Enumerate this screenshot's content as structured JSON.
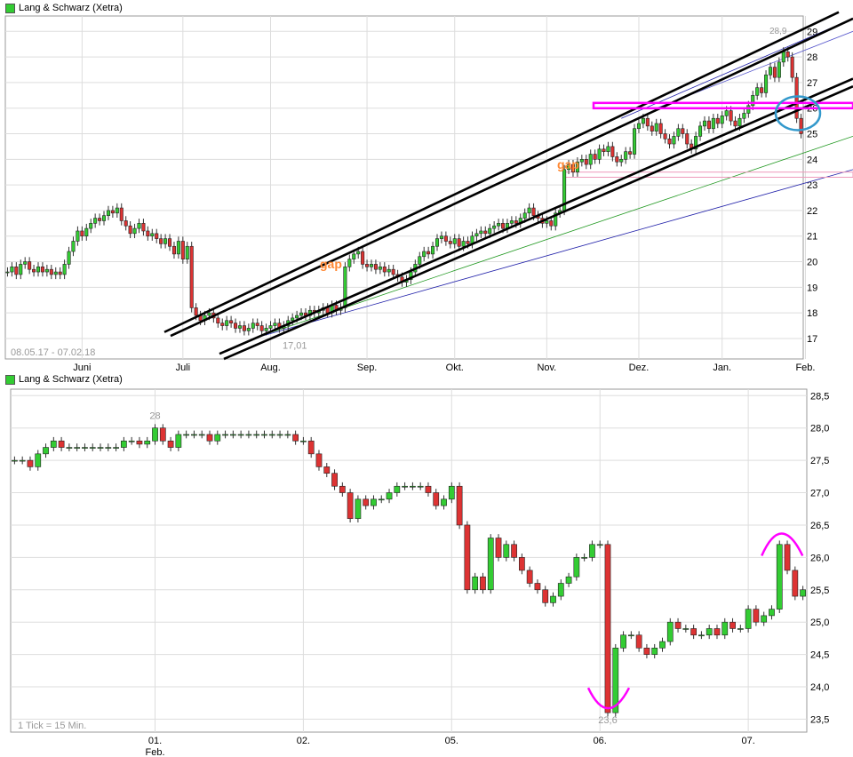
{
  "charts": [
    {
      "legend_label": "Lang & Schwarz (Xetra)",
      "range_label": "08.05.17 - 07.02.18",
      "x_ticks": [
        "Juni",
        "Juli",
        "Aug.",
        "Sep.",
        "Okt.",
        "Nov.",
        "Dez.",
        "Jan.",
        "Feb."
      ],
      "y_ticks": [
        "17",
        "18",
        "19",
        "20",
        "21",
        "22",
        "23",
        "24",
        "25",
        "26",
        "27",
        "28",
        "29"
      ],
      "annotations": [
        "gap",
        "gap"
      ],
      "low_label": "17,01",
      "high_label": "28,9"
    },
    {
      "legend_label": "Lang & Schwarz (Xetra)",
      "tick_note": "1 Tick = 15 Min.",
      "x_ticks": [
        "01.",
        "02.",
        "05.",
        "06.",
        "07."
      ],
      "x_sub": "Feb.",
      "y_ticks": [
        "23,5",
        "24,0",
        "24,5",
        "25,0",
        "25,5",
        "26,0",
        "26,5",
        "27,0",
        "27,5",
        "28,0",
        "28,5"
      ],
      "high_label": "28",
      "low_label": "23,6"
    }
  ],
  "chart_data": [
    {
      "type": "candlestick",
      "ylim": [
        16.2,
        29.6
      ],
      "grid": true,
      "up_color": "#33cc33",
      "down_color": "#dd3333",
      "channel_color": "#000000",
      "support_color": "#ff00ff",
      "circle_color": "#3399cc",
      "x_ticks": [
        "Juni",
        "Juli",
        "Aug.",
        "Sep.",
        "Okt.",
        "Nov.",
        "Dez.",
        "Jan.",
        "Feb."
      ],
      "tick_index": [
        17,
        40,
        60,
        82,
        102,
        123,
        144,
        163,
        182
      ],
      "closes": [
        19.6,
        19.8,
        19.5,
        19.9,
        20.0,
        19.7,
        19.6,
        19.8,
        19.6,
        19.7,
        19.5,
        19.6,
        19.5,
        19.9,
        20.4,
        20.8,
        21.2,
        21.0,
        21.3,
        21.5,
        21.7,
        21.6,
        21.8,
        22.0,
        21.9,
        22.1,
        21.6,
        21.4,
        21.1,
        21.3,
        21.5,
        21.2,
        21.0,
        21.1,
        20.9,
        20.7,
        20.9,
        20.6,
        20.3,
        20.8,
        20.1,
        20.6,
        18.2,
        17.9,
        17.7,
        17.9,
        18.0,
        17.8,
        17.6,
        17.5,
        17.7,
        17.6,
        17.4,
        17.5,
        17.3,
        17.4,
        17.6,
        17.5,
        17.3,
        17.4,
        17.5,
        17.6,
        17.4,
        17.5,
        17.7,
        17.8,
        17.9,
        18.0,
        17.9,
        18.1,
        18.0,
        18.1,
        18.2,
        18.0,
        18.3,
        18.1,
        18.2,
        19.8,
        20.1,
        20.3,
        20.4,
        19.9,
        19.8,
        19.9,
        19.7,
        19.8,
        19.6,
        19.7,
        19.5,
        19.4,
        19.2,
        19.3,
        19.6,
        19.9,
        20.2,
        20.4,
        20.3,
        20.6,
        20.9,
        21.0,
        20.8,
        20.7,
        20.9,
        20.6,
        20.8,
        20.7,
        21.0,
        21.1,
        21.2,
        21.1,
        21.3,
        21.4,
        21.5,
        21.3,
        21.5,
        21.6,
        21.5,
        21.7,
        21.9,
        22.1,
        21.8,
        21.7,
        21.5,
        21.6,
        21.4,
        21.9,
        22.0,
        23.6,
        23.8,
        23.5,
        23.9,
        24.0,
        23.8,
        24.2,
        24.0,
        24.4,
        24.3,
        24.5,
        24.1,
        23.9,
        24.0,
        24.3,
        24.2,
        25.2,
        25.4,
        25.6,
        25.3,
        25.1,
        25.4,
        25.0,
        24.8,
        24.6,
        24.9,
        25.2,
        25.0,
        24.6,
        24.4,
        24.9,
        25.3,
        25.5,
        25.2,
        25.6,
        25.4,
        25.7,
        25.9,
        25.5,
        25.3,
        25.6,
        25.8,
        26.1,
        26.5,
        26.8,
        26.6,
        27.3,
        27.6,
        27.2,
        27.8,
        28.2,
        28.0,
        27.2,
        25.6,
        25.0
      ],
      "high_label_value": 28.9,
      "low_label_value": 17.01,
      "support_level": 26.1
    },
    {
      "type": "candlestick",
      "ylim": [
        23.3,
        28.6
      ],
      "grid": true,
      "x_ticks": [
        "01.",
        "02.",
        "05.",
        "06.",
        "07."
      ],
      "tick_index": [
        18,
        37,
        56,
        75,
        94
      ],
      "closes": [
        27.5,
        27.5,
        27.4,
        27.6,
        27.7,
        27.8,
        27.7,
        27.7,
        27.7,
        27.7,
        27.7,
        27.7,
        27.7,
        27.7,
        27.8,
        27.8,
        27.75,
        27.8,
        28.0,
        27.8,
        27.7,
        27.9,
        27.9,
        27.9,
        27.9,
        27.8,
        27.9,
        27.9,
        27.9,
        27.9,
        27.9,
        27.9,
        27.9,
        27.9,
        27.9,
        27.9,
        27.8,
        27.8,
        27.6,
        27.4,
        27.3,
        27.1,
        27.0,
        26.6,
        26.9,
        26.8,
        26.9,
        26.9,
        27.0,
        27.1,
        27.1,
        27.1,
        27.1,
        27.0,
        26.8,
        26.9,
        27.1,
        26.5,
        25.5,
        25.7,
        25.5,
        26.3,
        26.0,
        26.2,
        26.0,
        25.8,
        25.6,
        25.5,
        25.3,
        25.4,
        25.6,
        25.7,
        26.0,
        26.0,
        26.2,
        26.2,
        23.6,
        24.6,
        24.8,
        24.8,
        24.6,
        24.5,
        24.6,
        24.7,
        25.0,
        24.9,
        24.9,
        24.8,
        24.8,
        24.9,
        24.8,
        25.0,
        24.9,
        24.9,
        25.2,
        25.0,
        25.1,
        25.2,
        26.2,
        25.8,
        25.4,
        25.5
      ],
      "high_label_value": 28.0,
      "low_label_value": 23.6
    }
  ]
}
